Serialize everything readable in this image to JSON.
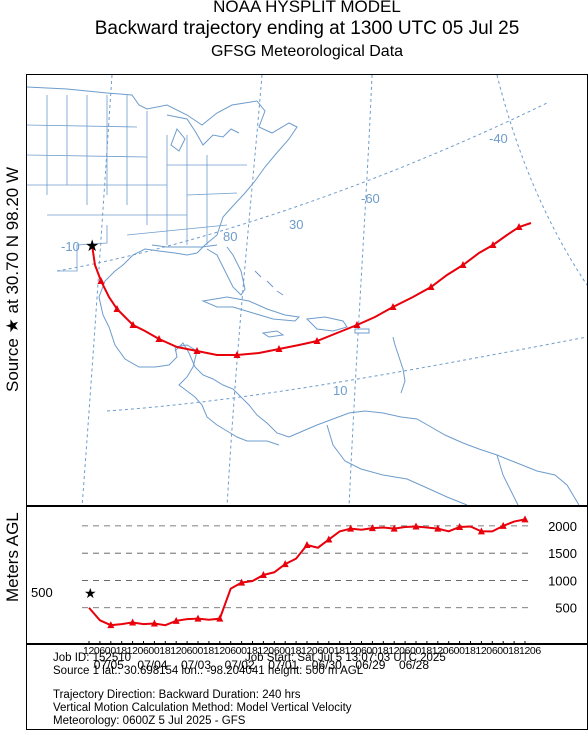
{
  "header": {
    "model": "NOAA HYSPLIT MODEL",
    "title": "Backward trajectory ending at 1300 UTC 05 Jul 25",
    "subtitle": "GFSG Meteorological Data"
  },
  "side_labels": {
    "source": "Source ★  at    30.70 N    98.20 W",
    "vertical_axis": "Meters AGL"
  },
  "map": {
    "source_lat": 30.7,
    "source_lon": -98.2,
    "grid_labels": [
      "-10",
      "-40",
      "-60",
      "30",
      "80",
      "10"
    ],
    "trajectory_color": "#e8000b",
    "coast_color": "#6e9ccc",
    "grid_color": "#6e9ccc"
  },
  "chart_data": {
    "type": "line",
    "x_axis": "time (hours back from start)",
    "hours_back": [
      0,
      6,
      12,
      18,
      24,
      30,
      36,
      42,
      48,
      54,
      60,
      66,
      72,
      78,
      84,
      90,
      96,
      102,
      108,
      114,
      120,
      126,
      132,
      138,
      144,
      150,
      156,
      162,
      168,
      174,
      180,
      186,
      192,
      198,
      204,
      210,
      216,
      222,
      228,
      234,
      240
    ],
    "heights_m_agl": [
      500,
      270,
      180,
      200,
      230,
      200,
      210,
      180,
      260,
      290,
      300,
      280,
      300,
      850,
      960,
      990,
      1100,
      1150,
      1300,
      1400,
      1650,
      1600,
      1750,
      1900,
      1950,
      1930,
      1960,
      1970,
      1950,
      1980,
      1990,
      1970,
      1950,
      1900,
      1980,
      1990,
      1900,
      1900,
      2000,
      2080,
      2120
    ],
    "y_ticks": [
      500,
      1000,
      1500,
      2000
    ],
    "ylim": [
      0,
      2200
    ],
    "hour_tick_labels": [
      "12",
      "06",
      "00",
      "18",
      "12",
      "06",
      "00",
      "18",
      "12",
      "06",
      "00",
      "18",
      "12",
      "06",
      "00",
      "18",
      "12",
      "06",
      "00",
      "18",
      "12",
      "06",
      "00",
      "18",
      "12",
      "06",
      "00",
      "18",
      "12",
      "06",
      "00",
      "18",
      "12",
      "06",
      "00",
      "18",
      "12",
      "06",
      "00",
      "18",
      "12",
      "06"
    ],
    "date_labels": [
      "07/05",
      "07/04",
      "07/03",
      "07/02",
      "07/01",
      "06/30",
      "06/29",
      "06/28"
    ],
    "source_height_label": "500"
  },
  "info": {
    "job_id": "Job ID: 152510",
    "job_start": "Job Start: Sat Jul  5 13:07:03 UTC 2025",
    "source_line": "Source 1      lat.: 30.698154    lon.: -98.204041     height: 500 m AGL",
    "direction": "Trajectory Direction: Backward       Duration: 240 hrs",
    "vertical": "Vertical Motion Calculation Method:           Model Vertical Velocity",
    "meteorology": "Meteorology: 0600Z 5 Jul 2025 - GFS"
  }
}
